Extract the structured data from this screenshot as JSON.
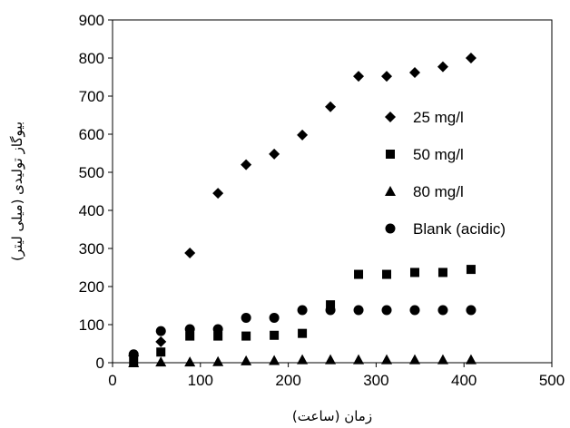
{
  "chart_data": {
    "type": "scatter",
    "xlabel": "زمان (ساعت)",
    "ylabel": "بیوگاز تولیدی (میلی لیتر)",
    "xlim": [
      0,
      500
    ],
    "ylim": [
      0,
      900
    ],
    "xticks": [
      "0",
      "100",
      "200",
      "300",
      "400",
      "500"
    ],
    "yticks": [
      "0",
      "100",
      "200",
      "300",
      "400",
      "500",
      "600",
      "700",
      "800",
      "900"
    ],
    "grid": false,
    "legend_position": "right",
    "x": [
      24,
      55,
      88,
      120,
      152,
      184,
      216,
      248,
      280,
      312,
      344,
      376,
      408
    ],
    "series": [
      {
        "name": "25 mg/l",
        "marker": "diamond",
        "values": [
          18,
          55,
          288,
          445,
          520,
          548,
          598,
          672,
          752,
          752,
          762,
          777,
          800
        ]
      },
      {
        "name": "50 mg/l",
        "marker": "square",
        "values": [
          3,
          28,
          70,
          70,
          70,
          72,
          77,
          152,
          232,
          232,
          237,
          237,
          245
        ]
      },
      {
        "name": "80 mg/l",
        "marker": "triangle",
        "values": [
          0,
          2,
          2,
          3,
          5,
          6,
          8,
          8,
          8,
          8,
          8,
          8,
          8
        ]
      },
      {
        "name": "Blank (acidic)",
        "marker": "circle",
        "values": [
          22,
          83,
          88,
          88,
          118,
          118,
          138,
          138,
          138,
          138,
          138,
          138,
          138
        ]
      }
    ]
  }
}
